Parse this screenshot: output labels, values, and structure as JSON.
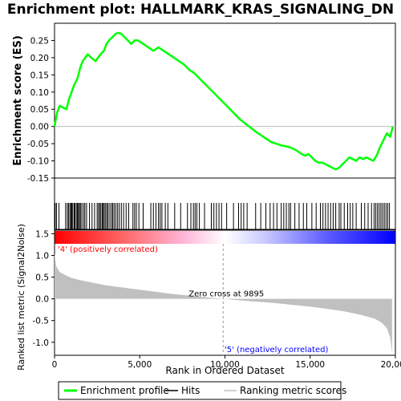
{
  "chart_data": {
    "type": "line",
    "title": "Enrichment plot: HALLMARK_KRAS_SIGNALING_DN",
    "es_panel": {
      "ylabel": "Enrichment score (ES)",
      "ylim": [
        -0.15,
        0.3
      ],
      "yticks": [
        "0.25",
        "0.20",
        "0.15",
        "0.10",
        "0.05",
        "0.00",
        "-0.05",
        "-0.10",
        "-0.15"
      ],
      "ytick_values": [
        0.25,
        0.2,
        0.15,
        0.1,
        0.05,
        0.0,
        -0.05,
        -0.1,
        -0.15
      ],
      "series_name": "Enrichment profile",
      "color": "#00ff00",
      "x": [
        0,
        150,
        300,
        700,
        850,
        1000,
        1150,
        1350,
        1500,
        1650,
        1800,
        1950,
        2150,
        2400,
        2550,
        2700,
        2900,
        3050,
        3200,
        3400,
        3600,
        3750,
        3900,
        4100,
        4300,
        4500,
        4700,
        4900,
        5200,
        5500,
        5800,
        6100,
        6400,
        6700,
        7000,
        7300,
        7600,
        7900,
        8200,
        8500,
        8800,
        9100,
        9400,
        9700,
        10000,
        10300,
        10600,
        10900,
        11200,
        11500,
        11800,
        12100,
        12400,
        12700,
        13000,
        13300,
        13600,
        13900,
        14200,
        14500,
        14700,
        14900,
        15100,
        15300,
        15500,
        15700,
        15900,
        16100,
        16300,
        16500,
        16700,
        16900,
        17100,
        17300,
        17500,
        17700,
        17900,
        18100,
        18300,
        18500,
        18700,
        18900,
        19100,
        19300,
        19500,
        19700,
        19850
      ],
      "y": [
        0.0,
        0.04,
        0.06,
        0.05,
        0.08,
        0.1,
        0.12,
        0.14,
        0.17,
        0.19,
        0.2,
        0.21,
        0.2,
        0.19,
        0.2,
        0.21,
        0.22,
        0.24,
        0.25,
        0.26,
        0.27,
        0.272,
        0.27,
        0.26,
        0.25,
        0.24,
        0.25,
        0.25,
        0.24,
        0.23,
        0.22,
        0.23,
        0.22,
        0.21,
        0.2,
        0.19,
        0.18,
        0.165,
        0.155,
        0.14,
        0.125,
        0.11,
        0.095,
        0.08,
        0.065,
        0.05,
        0.035,
        0.02,
        0.008,
        -0.003,
        -0.015,
        -0.025,
        -0.035,
        -0.045,
        -0.05,
        -0.055,
        -0.058,
        -0.062,
        -0.07,
        -0.08,
        -0.085,
        -0.08,
        -0.09,
        -0.1,
        -0.105,
        -0.105,
        -0.11,
        -0.115,
        -0.12,
        -0.125,
        -0.12,
        -0.11,
        -0.1,
        -0.09,
        -0.095,
        -0.1,
        -0.09,
        -0.095,
        -0.09,
        -0.095,
        -0.1,
        -0.085,
        -0.06,
        -0.04,
        -0.02,
        -0.03,
        0.0
      ]
    },
    "hits": [
      40,
      120,
      260,
      650,
      750,
      820,
      900,
      960,
      1010,
      1070,
      1150,
      1200,
      1280,
      1340,
      1400,
      1460,
      1520,
      1600,
      1700,
      1780,
      1880,
      2050,
      2200,
      2350,
      2500,
      2580,
      2650,
      2720,
      2800,
      2860,
      2920,
      3000,
      3080,
      3150,
      3250,
      3350,
      3420,
      3500,
      3600,
      3700,
      3800,
      3920,
      4050,
      4200,
      4350,
      4600,
      4700,
      4800,
      4950,
      5200,
      5650,
      5800,
      5950,
      6100,
      6200,
      6300,
      6500,
      6650,
      7050,
      7400,
      7800,
      8000,
      8150,
      8250,
      8350,
      8500,
      8800,
      9200,
      9350,
      9500,
      9650,
      9800,
      10100,
      10500,
      10800,
      10950,
      11100,
      11300,
      11800,
      12100,
      12400,
      12650,
      12850,
      13050,
      13300,
      13450,
      13600,
      13750,
      13850,
      14100,
      14350,
      14600,
      14800,
      15100,
      15350,
      15600,
      15750,
      15900,
      16050,
      16200,
      16350,
      16500,
      16700,
      16800,
      17000,
      17200,
      17350,
      17500,
      17700,
      18000,
      18200,
      18400,
      18600,
      18750,
      18850,
      18950,
      19050,
      19150,
      19250,
      19350,
      19450,
      19550,
      19650
    ],
    "rank_panel": {
      "ylabel": "Ranked list metric (Signal2Noise)",
      "ylim": [
        -1.3,
        1.6
      ],
      "yticks": [
        "1.5",
        "1.0",
        "0.5",
        "0.0",
        "-0.5",
        "-1.0"
      ],
      "ytick_values": [
        1.5,
        1.0,
        0.5,
        0.0,
        -0.5,
        -1.0
      ],
      "x": [
        0,
        100,
        300,
        600,
        1000,
        1500,
        2000,
        3000,
        4000,
        5000,
        6000,
        7000,
        8000,
        9000,
        9895,
        11000,
        12000,
        13000,
        14000,
        15000,
        16000,
        17000,
        18000,
        18800,
        19200,
        19500,
        19700,
        19800
      ],
      "y": [
        1.05,
        0.75,
        0.62,
        0.55,
        0.48,
        0.43,
        0.39,
        0.31,
        0.26,
        0.21,
        0.16,
        0.11,
        0.07,
        0.03,
        0.0,
        -0.04,
        -0.07,
        -0.1,
        -0.14,
        -0.18,
        -0.23,
        -0.29,
        -0.37,
        -0.46,
        -0.55,
        -0.68,
        -0.9,
        -1.25
      ],
      "zero_cross_label": "Zero cross at 9895",
      "zero_cross_x": 9895,
      "pos_label": "'4' (positively correlated)",
      "neg_label": "'5' (negatively correlated)",
      "pos_color": "#ff0000",
      "neg_color": "#0000ff"
    },
    "x_axis": {
      "xlabel": "Rank in Ordered Dataset",
      "xlim": [
        0,
        20000
      ],
      "xticks": [
        "0",
        "5,000",
        "10,000",
        "15,000",
        "20,000"
      ],
      "xtick_values": [
        0,
        5000,
        10000,
        15000,
        20000
      ]
    },
    "legend": {
      "position": "bottom",
      "items": [
        {
          "label": "Enrichment profile",
          "color": "#00ff00"
        },
        {
          "label": "Hits",
          "color": "#000000"
        },
        {
          "label": "Ranking metric scores",
          "color": "#c0c0c0"
        }
      ]
    }
  }
}
